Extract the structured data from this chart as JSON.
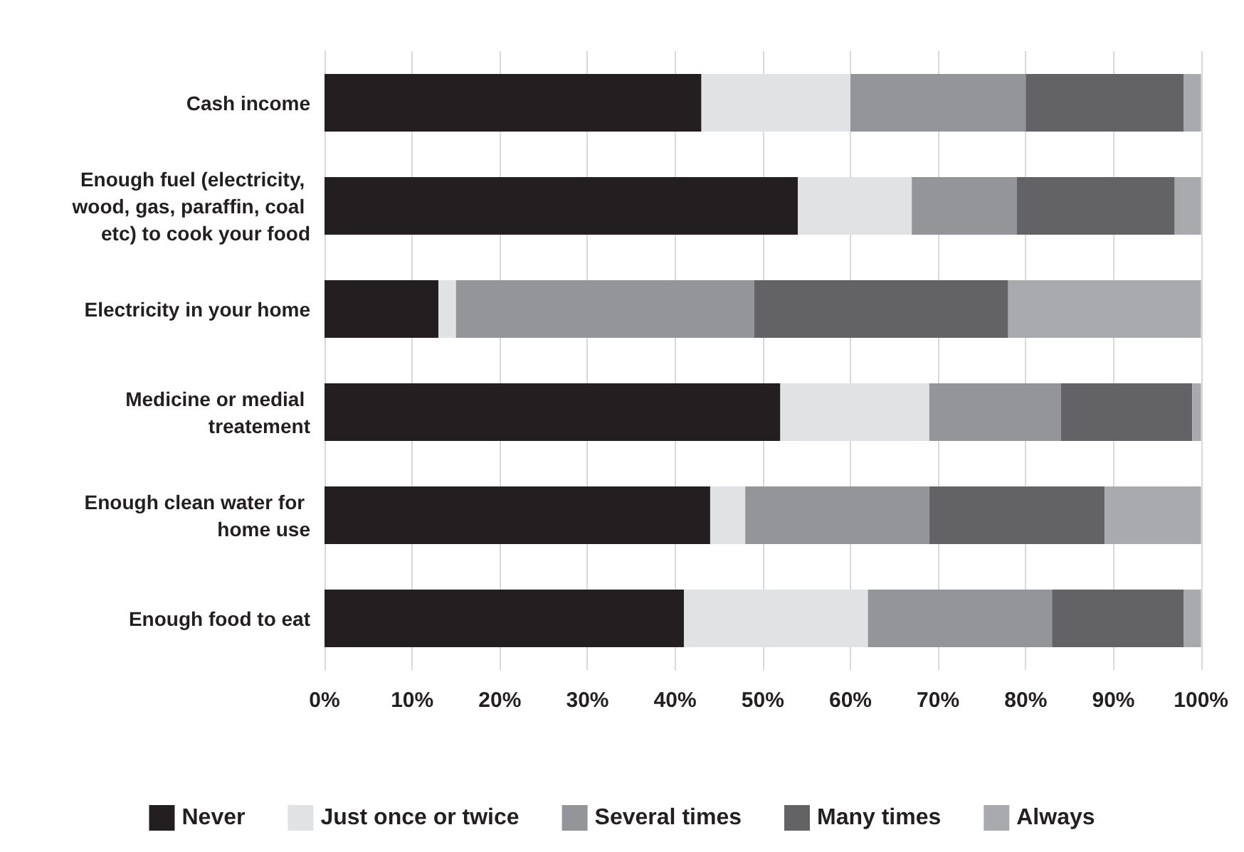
{
  "chart_data": {
    "type": "bar",
    "orientation": "horizontal",
    "stacked": true,
    "categories": [
      "Cash income",
      "Enough fuel (electricity, wood, gas, paraffin, coal etc) to cook your food",
      "Electricity in your home",
      "Medicine or medial treatement",
      "Enough clean water for home use",
      "Enough food to eat"
    ],
    "series": [
      {
        "name": "Never",
        "color": "#231f20",
        "values": [
          43,
          54,
          13,
          52,
          44,
          41
        ]
      },
      {
        "name": "Just once or twice",
        "color": "#e1e2e3",
        "values": [
          17,
          13,
          2,
          17,
          4,
          21
        ]
      },
      {
        "name": "Several times",
        "color": "#939598",
        "values": [
          20,
          12,
          34,
          15,
          21,
          21
        ]
      },
      {
        "name": "Many times",
        "color": "#636365",
        "values": [
          18,
          18,
          29,
          15,
          20,
          15
        ]
      },
      {
        "name": "Always",
        "color": "#a9aaad",
        "values": [
          2,
          3,
          22,
          1,
          11,
          2
        ]
      }
    ],
    "xlim": [
      0,
      100
    ],
    "xticks": [
      {
        "value": 0,
        "label": "0%"
      },
      {
        "value": 10,
        "label": "10%"
      },
      {
        "value": 20,
        "label": "20%"
      },
      {
        "value": 30,
        "label": "30%"
      },
      {
        "value": 40,
        "label": "40%"
      },
      {
        "value": 50,
        "label": "50%"
      },
      {
        "value": 60,
        "label": "60%"
      },
      {
        "value": 70,
        "label": "70%"
      },
      {
        "value": 80,
        "label": "80%"
      },
      {
        "value": 90,
        "label": "90%"
      },
      {
        "value": 100,
        "label": "100%"
      }
    ],
    "grid": "x",
    "legend": "bottom"
  }
}
